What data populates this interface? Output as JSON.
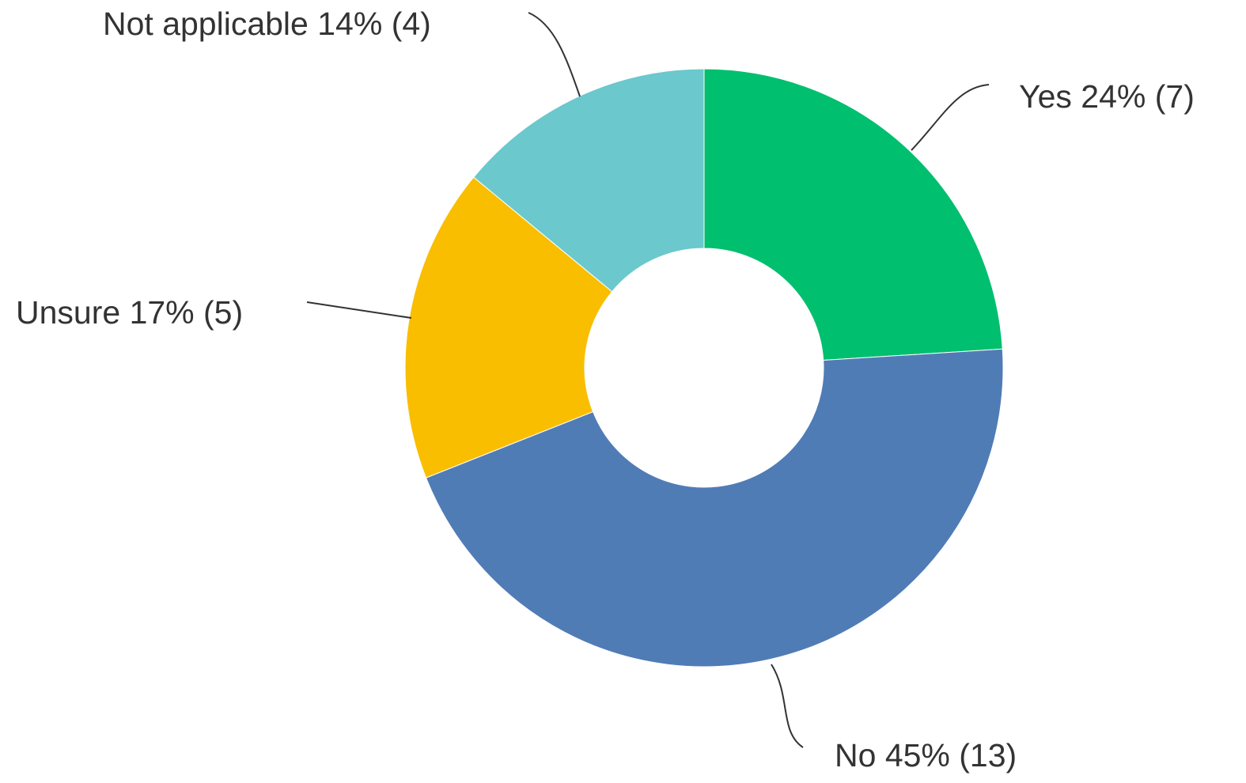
{
  "chart_data": {
    "type": "donut",
    "categories": [
      "Yes",
      "No",
      "Unsure",
      "Not applicable"
    ],
    "values": [
      24,
      45,
      17,
      14
    ],
    "value_labels": [
      "24% (7)",
      "45% (13)",
      "17% (5)",
      "14% (4)"
    ],
    "colors": [
      "#00bf6f",
      "#507cb6",
      "#f9be00",
      "#6bc8cd"
    ]
  }
}
